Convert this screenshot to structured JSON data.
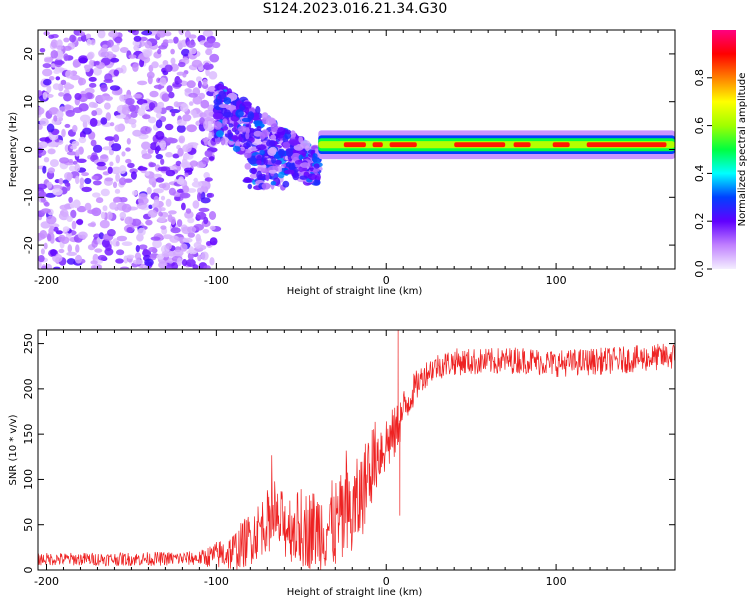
{
  "title": "S124.2023.016.21.34.G30",
  "chart_data": [
    {
      "type": "heatmap",
      "xlabel": "Height of straight line (km)",
      "ylabel": "Frequency (Hz)",
      "xlim": [
        -205,
        170
      ],
      "ylim": [
        -25,
        25
      ],
      "x_ticks": [
        -200,
        -100,
        0,
        100
      ],
      "y_ticks": [
        -20,
        -10,
        0,
        10,
        20
      ],
      "colorbar": {
        "label": "Normalized spectral amplitude",
        "range": [
          0,
          1
        ],
        "ticks": [
          "0.0",
          "0.2",
          "0.4",
          "0.6",
          "0.8"
        ],
        "stops": [
          "#f4eeff",
          "#c080ff",
          "#6000ff",
          "#0040ff",
          "#00ffff",
          "#00ff40",
          "#a0ff00",
          "#ffff00",
          "#ff8000",
          "#ff0000",
          "#ff0080"
        ]
      },
      "features": [
        {
          "x_range": [
            -205,
            -100
          ],
          "freq_range": [
            -25,
            25
          ],
          "amplitude": 0.1,
          "description_type": "scattered"
        },
        {
          "x_range": [
            -100,
            -40
          ],
          "freq_range": [
            -10,
            14
          ],
          "amplitude": 0.3,
          "description_type": "scattered"
        },
        {
          "x_range": [
            -40,
            170
          ],
          "freq_center": 1,
          "freq_halfwidth": 1.5,
          "amplitude": 0.75,
          "description_type": "band"
        }
      ]
    },
    {
      "type": "line",
      "xlabel": "Height of straight line (km)",
      "ylabel": "SNR (10 * v/v)",
      "xlim": [
        -205,
        170
      ],
      "ylim": [
        0,
        265
      ],
      "x_ticks": [
        -200,
        -100,
        0,
        100
      ],
      "y_ticks": [
        0,
        50,
        100,
        150,
        200,
        250
      ],
      "color": "#ee2222",
      "trend": {
        "x": [
          -205,
          -150,
          -110,
          -90,
          -80,
          -70,
          -60,
          -50,
          -40,
          -30,
          -20,
          -15,
          -10,
          -5,
          0,
          5,
          10,
          15,
          20,
          25,
          30,
          40,
          60,
          80,
          100,
          120,
          140,
          160,
          170
        ],
        "y": [
          12,
          12,
          13,
          20,
          35,
          55,
          50,
          45,
          45,
          50,
          60,
          80,
          110,
          130,
          140,
          150,
          175,
          195,
          210,
          220,
          225,
          230,
          230,
          232,
          228,
          230,
          232,
          235,
          236
        ]
      },
      "noise_amplitude": [
        {
          "x": -205,
          "amp": 7
        },
        {
          "x": -110,
          "amp": 8
        },
        {
          "x": -80,
          "amp": 30
        },
        {
          "x": -20,
          "amp": 55
        },
        {
          "x": 20,
          "amp": 15
        },
        {
          "x": 170,
          "amp": 15
        }
      ],
      "spikes": [
        {
          "x": 7,
          "y": 265
        },
        {
          "x": 8,
          "y": 60
        }
      ]
    }
  ]
}
